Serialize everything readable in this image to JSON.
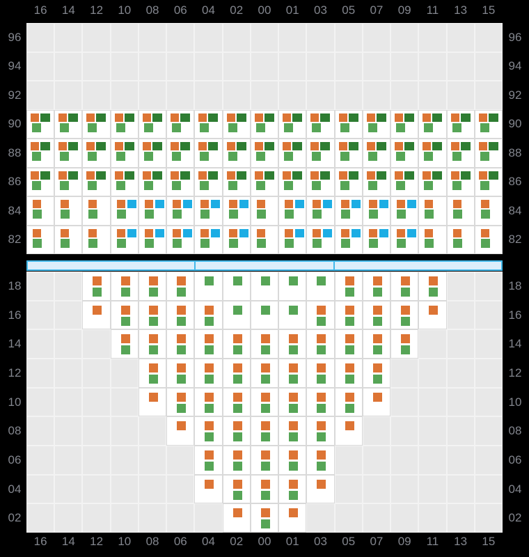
{
  "colors": {
    "background": "#000000",
    "axis_label": "#83868E",
    "orange": "#DD7434",
    "dark_green": "#2E7D32",
    "light_green": "#56A556",
    "blue": "#1CADE4",
    "empty_cell": "#E8E8E8",
    "empty_cell_border": "#F3F3F3",
    "filled_cell": "#FFFFFF",
    "filled_cell_border": "#D9D9D9",
    "scrollbar_fill": "#DCEEFB",
    "scrollbar_border": "#41B8EA"
  },
  "chart_data": {
    "type": "heatmap",
    "x_categories": [
      "16",
      "14",
      "12",
      "10",
      "08",
      "06",
      "04",
      "02",
      "00",
      "01",
      "03",
      "05",
      "07",
      "09",
      "11",
      "13",
      "15"
    ],
    "x_axis": "same column labels repeated along top and bottom edges",
    "y_axis": "row labels repeated on left and right edges of each panel",
    "grid": true,
    "cell_codes": {
      "A": "orange + dark-green squares side by side on top, light-green square below",
      "B": "orange square on top, light-green square below",
      "C": "orange + blue squares side by side on top, light-green square below",
      "P": "orange square above light-green square, centered",
      "O": "single orange square",
      "G": "single light-green square",
      "": "empty gray cell"
    },
    "panels": [
      {
        "id": "upper",
        "y_categories": [
          "96",
          "94",
          "92",
          "90",
          "88",
          "86",
          "84",
          "82"
        ],
        "rows": [
          [
            "",
            "",
            "",
            "",
            "",
            "",
            "",
            "",
            "",
            "",
            "",
            "",
            "",
            "",
            "",
            "",
            ""
          ],
          [
            "",
            "",
            "",
            "",
            "",
            "",
            "",
            "",
            "",
            "",
            "",
            "",
            "",
            "",
            "",
            "",
            ""
          ],
          [
            "",
            "",
            "",
            "",
            "",
            "",
            "",
            "",
            "",
            "",
            "",
            "",
            "",
            "",
            "",
            "",
            ""
          ],
          [
            "A",
            "A",
            "A",
            "A",
            "A",
            "A",
            "A",
            "A",
            "A",
            "A",
            "A",
            "A",
            "A",
            "A",
            "A",
            "A",
            "A"
          ],
          [
            "A",
            "A",
            "A",
            "A",
            "A",
            "A",
            "A",
            "A",
            "A",
            "A",
            "A",
            "A",
            "A",
            "A",
            "A",
            "A",
            "A"
          ],
          [
            "A",
            "A",
            "A",
            "A",
            "A",
            "A",
            "A",
            "A",
            "A",
            "A",
            "A",
            "A",
            "A",
            "A",
            "A",
            "A",
            "A"
          ],
          [
            "B",
            "B",
            "B",
            "C",
            "C",
            "C",
            "C",
            "C",
            "B",
            "C",
            "C",
            "C",
            "C",
            "C",
            "B",
            "B",
            "B"
          ],
          [
            "B",
            "B",
            "B",
            "C",
            "C",
            "C",
            "C",
            "C",
            "B",
            "C",
            "C",
            "C",
            "C",
            "C",
            "B",
            "B",
            "B"
          ]
        ]
      },
      {
        "id": "lower",
        "y_categories": [
          "18",
          "16",
          "14",
          "12",
          "10",
          "08",
          "06",
          "04",
          "02"
        ],
        "rows": [
          [
            "",
            "",
            "P",
            "P",
            "P",
            "P",
            "G",
            "G",
            "G",
            "G",
            "G",
            "P",
            "P",
            "P",
            "P",
            "",
            ""
          ],
          [
            "",
            "",
            "O",
            "P",
            "P",
            "P",
            "P",
            "G",
            "G",
            "G",
            "P",
            "P",
            "P",
            "P",
            "O",
            "",
            ""
          ],
          [
            "",
            "",
            "",
            "P",
            "P",
            "P",
            "P",
            "P",
            "P",
            "P",
            "P",
            "P",
            "P",
            "P",
            "",
            "",
            ""
          ],
          [
            "",
            "",
            "",
            "",
            "P",
            "P",
            "P",
            "P",
            "P",
            "P",
            "P",
            "P",
            "P",
            "",
            "",
            "",
            ""
          ],
          [
            "",
            "",
            "",
            "",
            "O",
            "P",
            "P",
            "P",
            "P",
            "P",
            "P",
            "P",
            "O",
            "",
            "",
            "",
            ""
          ],
          [
            "",
            "",
            "",
            "",
            "",
            "O",
            "P",
            "P",
            "P",
            "P",
            "P",
            "O",
            "",
            "",
            "",
            "",
            ""
          ],
          [
            "",
            "",
            "",
            "",
            "",
            "",
            "P",
            "P",
            "P",
            "P",
            "P",
            "",
            "",
            "",
            "",
            "",
            ""
          ],
          [
            "",
            "",
            "",
            "",
            "",
            "",
            "O",
            "P",
            "P",
            "P",
            "O",
            "",
            "",
            "",
            "",
            "",
            ""
          ],
          [
            "",
            "",
            "",
            "",
            "",
            "",
            "",
            "O",
            "P",
            "O",
            "",
            "",
            "",
            "",
            "",
            "",
            ""
          ]
        ]
      }
    ]
  },
  "scrollbar": {
    "segments": 3,
    "divider_positions_pct": [
      35.1,
      64.5
    ]
  }
}
